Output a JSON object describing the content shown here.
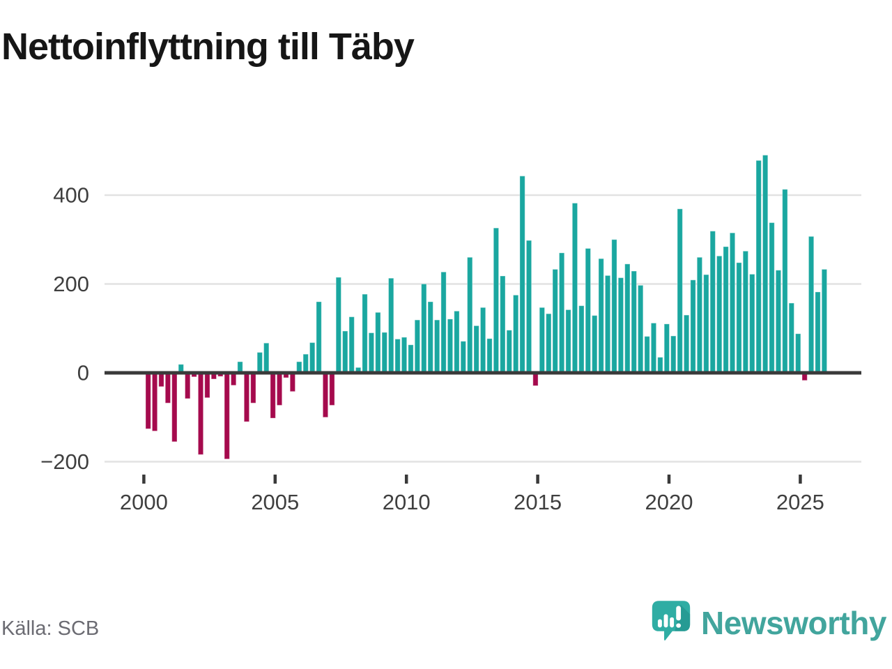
{
  "page": {
    "title": "Nettoinflyttning till Täby",
    "source": "Källa: SCB"
  },
  "brand": {
    "name": "Newsworthy"
  },
  "colors": {
    "positive": "#1aa7a0",
    "negative": "#a50a4d",
    "axis_line": "#3a3a3a",
    "gridline": "#e2e2e2",
    "tick_text": "#3f3f3f",
    "title_text": "#161616",
    "source_text": "#6b6b72",
    "brand_teal": "#42a59d",
    "logo_teal": "#2fada4",
    "logo_shade": "#1f8d86"
  },
  "chart_data": {
    "type": "bar",
    "title": "Nettoinflyttning till Täby",
    "granularity": "quarterly",
    "start_year": 2000,
    "series": [
      {
        "year": 2000,
        "values": [
          -126,
          -131,
          -31,
          -68
        ]
      },
      {
        "year": 2001,
        "values": [
          -155,
          19,
          -58,
          -9
        ]
      },
      {
        "year": 2002,
        "values": [
          -184,
          -56,
          -14,
          -8
        ]
      },
      {
        "year": 2003,
        "values": [
          -194,
          -28,
          25,
          -110
        ]
      },
      {
        "year": 2004,
        "values": [
          -68,
          46,
          67,
          -102
        ]
      },
      {
        "year": 2005,
        "values": [
          -73,
          -11,
          -42,
          25
        ]
      },
      {
        "year": 2006,
        "values": [
          42,
          68,
          160,
          -100
        ]
      },
      {
        "year": 2007,
        "values": [
          -73,
          215,
          94,
          126
        ]
      },
      {
        "year": 2008,
        "values": [
          12,
          177,
          90,
          136
        ]
      },
      {
        "year": 2009,
        "values": [
          91,
          213,
          76,
          80
        ]
      },
      {
        "year": 2010,
        "values": [
          63,
          119,
          200,
          160
        ]
      },
      {
        "year": 2011,
        "values": [
          119,
          227,
          121,
          139
        ]
      },
      {
        "year": 2012,
        "values": [
          71,
          260,
          106,
          147
        ]
      },
      {
        "year": 2013,
        "values": [
          77,
          326,
          218,
          96
        ]
      },
      {
        "year": 2014,
        "values": [
          175,
          443,
          298,
          -29
        ]
      },
      {
        "year": 2015,
        "values": [
          147,
          133,
          233,
          270
        ]
      },
      {
        "year": 2016,
        "values": [
          142,
          382,
          151,
          280
        ]
      },
      {
        "year": 2017,
        "values": [
          129,
          257,
          219,
          300
        ]
      },
      {
        "year": 2018,
        "values": [
          214,
          245,
          229,
          197
        ]
      },
      {
        "year": 2019,
        "values": [
          82,
          112,
          35,
          110
        ]
      },
      {
        "year": 2020,
        "values": [
          83,
          369,
          130,
          209
        ]
      },
      {
        "year": 2021,
        "values": [
          260,
          221,
          319,
          263
        ]
      },
      {
        "year": 2022,
        "values": [
          284,
          315,
          248,
          274
        ]
      },
      {
        "year": 2023,
        "values": [
          222,
          478,
          490,
          338
        ]
      },
      {
        "year": 2024,
        "values": [
          231,
          413,
          157,
          88
        ]
      },
      {
        "year": 2025,
        "values": [
          -17,
          307,
          182,
          233
        ]
      }
    ],
    "y_ticks": [
      400,
      200,
      0,
      -200
    ],
    "x_tick_labels": [
      "2000",
      "2005",
      "2010",
      "2015",
      "2020",
      "2025"
    ],
    "x_tick_years": [
      2000,
      2005,
      2010,
      2015,
      2020,
      2025
    ],
    "ylim": [
      -220,
      510
    ],
    "grid": true,
    "legend": "none",
    "positive_color": "#1aa7a0",
    "negative_color": "#a50a4d"
  }
}
